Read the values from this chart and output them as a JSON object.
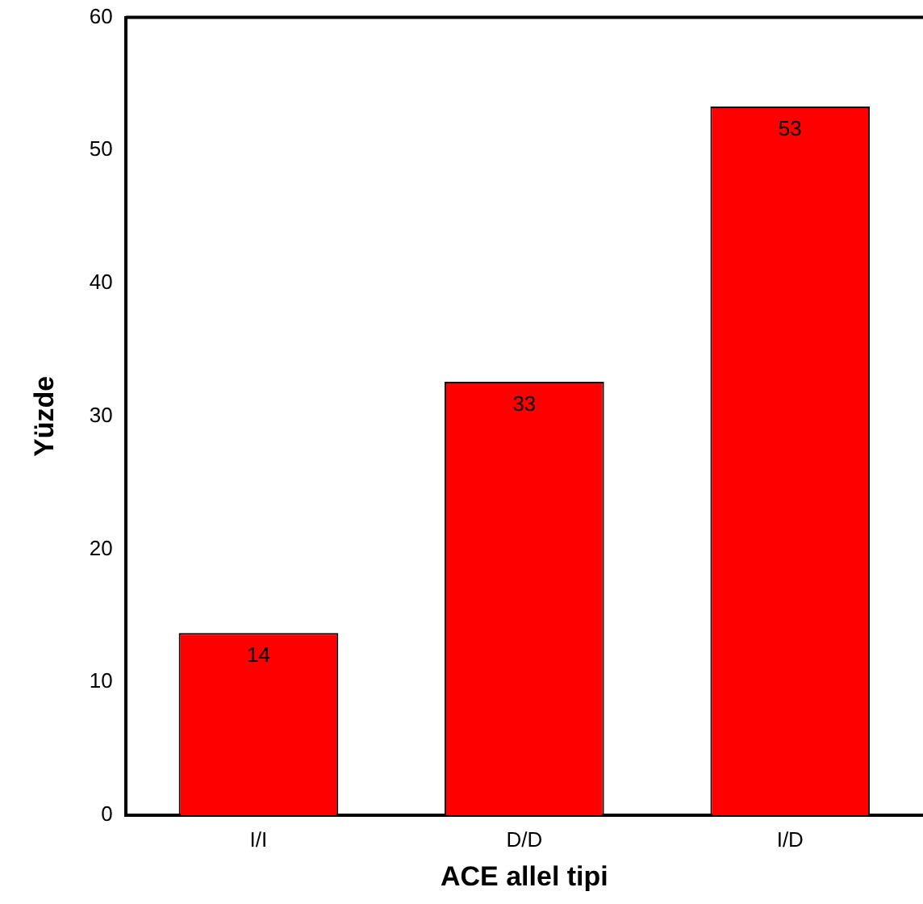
{
  "chart_data": {
    "type": "bar",
    "xlabel": "ACE allel tipi",
    "ylabel": "Yüzde",
    "categories": [
      "I/I",
      "D/D",
      "I/D"
    ],
    "values": [
      13.7,
      32.6,
      53.3
    ],
    "value_labels": [
      "14",
      "33",
      "53"
    ],
    "color": "#ff0000",
    "ylim": [
      0,
      60
    ],
    "yticks": [
      0,
      10,
      20,
      30,
      40,
      50,
      60
    ],
    "grid": false,
    "legend": false
  }
}
